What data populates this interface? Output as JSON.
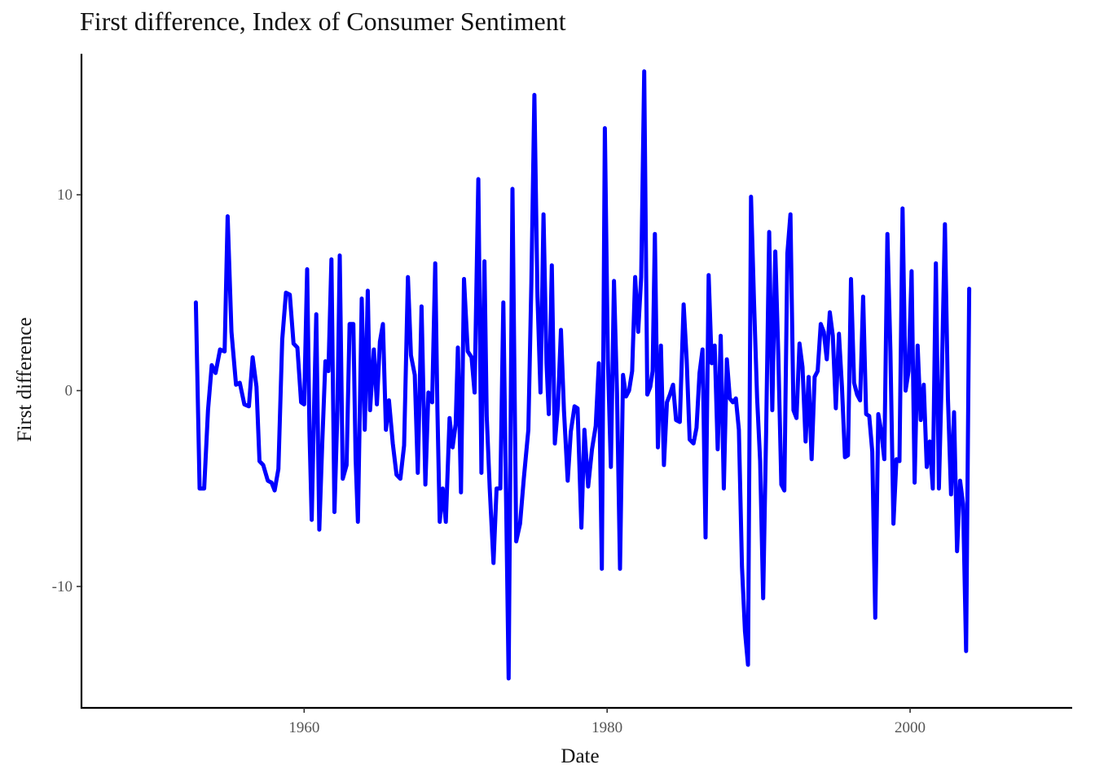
{
  "chart_data": {
    "type": "line",
    "title": "First difference, Index of Consumer Sentiment",
    "xlabel": "Date",
    "ylabel": "First difference",
    "xlim": [
      1945.3,
      2010.7
    ],
    "ylim": [
      -16.2,
      17.2
    ],
    "x_ticks": [
      1960,
      1980,
      2000
    ],
    "y_ticks": [
      -10,
      0,
      10
    ],
    "grid": false,
    "line_color": "#0000ff",
    "series": [
      {
        "values": [
          [
            1952.85,
            4.5
          ],
          [
            1953.1,
            -5.0
          ],
          [
            1953.4,
            -5.0
          ],
          [
            1953.65,
            -1.0
          ],
          [
            1953.9,
            1.3
          ],
          [
            1954.15,
            0.9
          ],
          [
            1954.45,
            2.1
          ],
          [
            1954.75,
            2.0
          ],
          [
            1954.95,
            8.9
          ],
          [
            1955.2,
            3.0
          ],
          [
            1955.5,
            0.3
          ],
          [
            1955.75,
            0.4
          ],
          [
            1956.05,
            -0.7
          ],
          [
            1956.35,
            -0.8
          ],
          [
            1956.6,
            1.7
          ],
          [
            1956.85,
            0.2
          ],
          [
            1957.05,
            -3.6
          ],
          [
            1957.3,
            -3.8
          ],
          [
            1957.6,
            -4.6
          ],
          [
            1957.85,
            -4.7
          ],
          [
            1958.05,
            -5.1
          ],
          [
            1958.3,
            -4.0
          ],
          [
            1958.55,
            2.6
          ],
          [
            1958.8,
            5.0
          ],
          [
            1959.05,
            4.9
          ],
          [
            1959.3,
            2.4
          ],
          [
            1959.55,
            2.2
          ],
          [
            1959.8,
            -0.6
          ],
          [
            1960.0,
            -0.7
          ],
          [
            1960.2,
            6.2
          ],
          [
            1960.35,
            -2.0
          ],
          [
            1960.5,
            -6.6
          ],
          [
            1960.65,
            -1.0
          ],
          [
            1960.8,
            3.9
          ],
          [
            1961.0,
            -7.1
          ],
          [
            1961.2,
            -2.6
          ],
          [
            1961.4,
            1.5
          ],
          [
            1961.6,
            1.0
          ],
          [
            1961.8,
            6.7
          ],
          [
            1962.0,
            -6.2
          ],
          [
            1962.2,
            -1.0
          ],
          [
            1962.35,
            6.9
          ],
          [
            1962.55,
            -4.5
          ],
          [
            1962.8,
            -3.8
          ],
          [
            1963.0,
            3.4
          ],
          [
            1963.25,
            3.4
          ],
          [
            1963.4,
            -3.5
          ],
          [
            1963.55,
            -6.7
          ],
          [
            1963.8,
            4.7
          ],
          [
            1964.0,
            -2.0
          ],
          [
            1964.2,
            5.1
          ],
          [
            1964.35,
            -1.0
          ],
          [
            1964.6,
            2.1
          ],
          [
            1964.8,
            -0.7
          ],
          [
            1965.0,
            2.5
          ],
          [
            1965.2,
            3.4
          ],
          [
            1965.4,
            -2.0
          ],
          [
            1965.6,
            -0.5
          ],
          [
            1965.85,
            -2.7
          ],
          [
            1966.1,
            -4.3
          ],
          [
            1966.35,
            -4.5
          ],
          [
            1966.6,
            -2.8
          ],
          [
            1966.85,
            5.8
          ],
          [
            1967.05,
            1.8
          ],
          [
            1967.3,
            0.8
          ],
          [
            1967.5,
            -4.2
          ],
          [
            1967.75,
            4.3
          ],
          [
            1968.0,
            -4.8
          ],
          [
            1968.2,
            -0.1
          ],
          [
            1968.45,
            -0.6
          ],
          [
            1968.65,
            6.5
          ],
          [
            1968.8,
            -1.0
          ],
          [
            1968.95,
            -6.7
          ],
          [
            1969.15,
            -5.0
          ],
          [
            1969.35,
            -6.7
          ],
          [
            1969.6,
            -1.4
          ],
          [
            1969.8,
            -2.9
          ],
          [
            1970.0,
            -1.7
          ],
          [
            1970.15,
            2.2
          ],
          [
            1970.35,
            -5.2
          ],
          [
            1970.55,
            5.7
          ],
          [
            1970.8,
            2.0
          ],
          [
            1971.05,
            1.7
          ],
          [
            1971.25,
            -0.1
          ],
          [
            1971.5,
            10.8
          ],
          [
            1971.7,
            -4.2
          ],
          [
            1971.9,
            6.6
          ],
          [
            1972.05,
            -1.3
          ],
          [
            1972.25,
            -5.0
          ],
          [
            1972.5,
            -8.8
          ],
          [
            1972.7,
            -5.0
          ],
          [
            1972.95,
            -5.0
          ],
          [
            1973.15,
            4.5
          ],
          [
            1973.3,
            -3.9
          ],
          [
            1973.5,
            -14.7
          ],
          [
            1973.75,
            10.3
          ],
          [
            1974.0,
            -7.7
          ],
          [
            1974.25,
            -6.8
          ],
          [
            1974.5,
            -4.5
          ],
          [
            1974.8,
            -2.0
          ],
          [
            1975.0,
            5.5
          ],
          [
            1975.2,
            15.1
          ],
          [
            1975.4,
            4.8
          ],
          [
            1975.6,
            -0.1
          ],
          [
            1975.8,
            9.0
          ],
          [
            1976.0,
            1.4
          ],
          [
            1976.15,
            -1.2
          ],
          [
            1976.35,
            6.4
          ],
          [
            1976.55,
            -2.7
          ],
          [
            1976.75,
            -0.8
          ],
          [
            1976.95,
            3.1
          ],
          [
            1977.15,
            -1.0
          ],
          [
            1977.4,
            -4.6
          ],
          [
            1977.6,
            -2.1
          ],
          [
            1977.85,
            -0.8
          ],
          [
            1978.05,
            -0.9
          ],
          [
            1978.3,
            -7.0
          ],
          [
            1978.5,
            -2.0
          ],
          [
            1978.75,
            -4.9
          ],
          [
            1979.0,
            -3.0
          ],
          [
            1979.25,
            -1.8
          ],
          [
            1979.45,
            1.4
          ],
          [
            1979.65,
            -9.1
          ],
          [
            1979.85,
            13.4
          ],
          [
            1980.05,
            1.6
          ],
          [
            1980.25,
            -3.9
          ],
          [
            1980.45,
            5.6
          ],
          [
            1980.65,
            -0.1
          ],
          [
            1980.85,
            -9.1
          ],
          [
            1981.05,
            0.8
          ],
          [
            1981.25,
            -0.3
          ],
          [
            1981.45,
            0.0
          ],
          [
            1981.65,
            1.0
          ],
          [
            1981.85,
            5.8
          ],
          [
            1982.05,
            3.0
          ],
          [
            1982.25,
            5.8
          ],
          [
            1982.45,
            16.3
          ],
          [
            1982.65,
            -0.2
          ],
          [
            1982.85,
            0.2
          ],
          [
            1983.0,
            1.0
          ],
          [
            1983.15,
            8.0
          ],
          [
            1983.35,
            -2.9
          ],
          [
            1983.55,
            2.3
          ],
          [
            1983.75,
            -3.8
          ],
          [
            1983.95,
            -0.6
          ],
          [
            1984.15,
            -0.2
          ],
          [
            1984.35,
            0.3
          ],
          [
            1984.55,
            -1.5
          ],
          [
            1984.8,
            -1.6
          ],
          [
            1985.05,
            4.4
          ],
          [
            1985.25,
            1.6
          ],
          [
            1985.45,
            -2.5
          ],
          [
            1985.7,
            -2.7
          ],
          [
            1985.9,
            -1.9
          ],
          [
            1986.1,
            0.9
          ],
          [
            1986.3,
            2.1
          ],
          [
            1986.5,
            -7.5
          ],
          [
            1986.7,
            5.9
          ],
          [
            1986.9,
            1.4
          ],
          [
            1987.1,
            2.3
          ],
          [
            1987.3,
            -3.0
          ],
          [
            1987.5,
            2.8
          ],
          [
            1987.7,
            -5.0
          ],
          [
            1987.9,
            1.6
          ],
          [
            1988.1,
            -0.4
          ],
          [
            1988.3,
            -0.6
          ],
          [
            1988.5,
            -0.4
          ],
          [
            1988.7,
            -2.0
          ],
          [
            1988.9,
            -9.0
          ],
          [
            1989.1,
            -12.3
          ],
          [
            1989.3,
            -14.0
          ],
          [
            1989.5,
            9.9
          ],
          [
            1989.7,
            4.5
          ],
          [
            1989.9,
            -0.4
          ],
          [
            1990.1,
            -3.6
          ],
          [
            1990.3,
            -10.6
          ],
          [
            1990.5,
            -2.0
          ],
          [
            1990.7,
            8.1
          ],
          [
            1990.9,
            -1.0
          ],
          [
            1991.1,
            7.1
          ],
          [
            1991.3,
            1.8
          ],
          [
            1991.5,
            -4.8
          ],
          [
            1991.7,
            -5.1
          ],
          [
            1991.9,
            7.0
          ],
          [
            1992.1,
            9.0
          ],
          [
            1992.3,
            -1.0
          ],
          [
            1992.5,
            -1.4
          ],
          [
            1992.7,
            2.4
          ],
          [
            1992.9,
            1.2
          ],
          [
            1993.1,
            -2.6
          ],
          [
            1993.3,
            0.7
          ],
          [
            1993.5,
            -3.5
          ],
          [
            1993.7,
            0.7
          ],
          [
            1993.9,
            1.0
          ],
          [
            1994.1,
            3.4
          ],
          [
            1994.3,
            3.0
          ],
          [
            1994.5,
            1.6
          ],
          [
            1994.7,
            4.0
          ],
          [
            1994.9,
            2.8
          ],
          [
            1995.1,
            -0.9
          ],
          [
            1995.3,
            2.9
          ],
          [
            1995.5,
            0.2
          ],
          [
            1995.7,
            -3.4
          ],
          [
            1995.9,
            -3.3
          ],
          [
            1996.1,
            5.7
          ],
          [
            1996.3,
            0.4
          ],
          [
            1996.5,
            -0.2
          ],
          [
            1996.7,
            -0.5
          ],
          [
            1996.9,
            4.8
          ],
          [
            1997.1,
            -1.2
          ],
          [
            1997.3,
            -1.3
          ],
          [
            1997.5,
            -3.1
          ],
          [
            1997.7,
            -11.6
          ],
          [
            1997.9,
            -1.2
          ],
          [
            1998.1,
            -2.1
          ],
          [
            1998.3,
            -3.5
          ],
          [
            1998.5,
            8.0
          ],
          [
            1998.7,
            2.0
          ],
          [
            1998.9,
            -6.8
          ],
          [
            1999.1,
            -3.5
          ],
          [
            1999.3,
            -3.6
          ],
          [
            1999.5,
            9.3
          ],
          [
            1999.7,
            0.0
          ],
          [
            1999.9,
            1.0
          ],
          [
            2000.1,
            6.1
          ],
          [
            2000.3,
            -4.7
          ],
          [
            2000.5,
            2.3
          ],
          [
            2000.7,
            -1.5
          ],
          [
            2000.9,
            0.3
          ],
          [
            2001.1,
            -3.9
          ],
          [
            2001.3,
            -2.6
          ],
          [
            2001.5,
            -5.0
          ],
          [
            2001.7,
            6.5
          ],
          [
            2001.9,
            -5.0
          ],
          [
            2002.1,
            1.0
          ],
          [
            2002.3,
            8.5
          ],
          [
            2002.5,
            -0.4
          ],
          [
            2002.7,
            -5.3
          ],
          [
            2002.9,
            -1.1
          ],
          [
            2003.1,
            -8.2
          ],
          [
            2003.3,
            -4.6
          ],
          [
            2003.5,
            -5.8
          ],
          [
            2003.7,
            -13.3
          ],
          [
            2003.9,
            5.2
          ]
        ]
      }
    ]
  }
}
